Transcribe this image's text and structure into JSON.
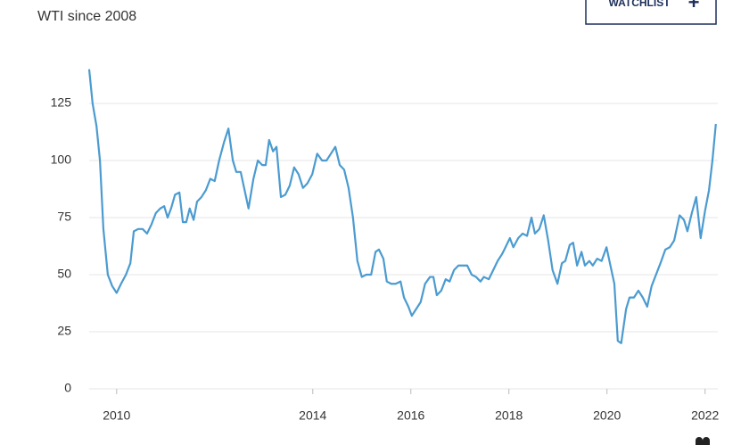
{
  "chart_data": {
    "type": "line",
    "subtitle": "WTI since 2008",
    "x": [
      2009.44,
      2009.51,
      2009.59,
      2009.66,
      2009.73,
      2009.82,
      2009.91,
      2010.0,
      2010.09,
      2010.19,
      2010.28,
      2010.35,
      2010.44,
      2010.53,
      2010.62,
      2010.71,
      2010.8,
      2010.89,
      2010.97,
      2011.04,
      2011.11,
      2011.19,
      2011.28,
      2011.35,
      2011.42,
      2011.49,
      2011.57,
      2011.64,
      2011.73,
      2011.82,
      2011.91,
      2012.0,
      2012.09,
      2012.19,
      2012.28,
      2012.37,
      2012.44,
      2012.53,
      2012.6,
      2012.69,
      2012.79,
      2012.88,
      2012.97,
      2013.04,
      2013.11,
      2013.19,
      2013.26,
      2013.35,
      2013.44,
      2013.53,
      2013.62,
      2013.71,
      2013.8,
      2013.89,
      2013.99,
      2014.09,
      2014.19,
      2014.28,
      2014.37,
      2014.46,
      2014.55,
      2014.64,
      2014.73,
      2014.82,
      2014.91,
      2015.0,
      2015.09,
      2015.19,
      2015.28,
      2015.35,
      2015.44,
      2015.51,
      2015.6,
      2015.69,
      2015.79,
      2015.86,
      2015.95,
      2016.02,
      2016.11,
      2016.2,
      2016.29,
      2016.39,
      2016.46,
      2016.53,
      2016.62,
      2016.71,
      2016.79,
      2016.88,
      2016.97,
      2017.06,
      2017.15,
      2017.24,
      2017.33,
      2017.42,
      2017.49,
      2017.59,
      2017.68,
      2017.77,
      2017.86,
      2017.93,
      2018.02,
      2018.09,
      2018.19,
      2018.28,
      2018.37,
      2018.46,
      2018.53,
      2018.62,
      2018.71,
      2018.8,
      2018.89,
      2018.99,
      2019.08,
      2019.15,
      2019.24,
      2019.31,
      2019.39,
      2019.48,
      2019.55,
      2019.64,
      2019.71,
      2019.8,
      2019.89,
      2019.99,
      2020.08,
      2020.15,
      2020.22,
      2020.29,
      2020.39,
      2020.46,
      2020.55,
      2020.64,
      2020.73,
      2020.82,
      2020.91,
      2021.0,
      2021.09,
      2021.19,
      2021.28,
      2021.37,
      2021.48,
      2021.57,
      2021.64,
      2021.73,
      2021.82,
      2021.91,
      2022.0,
      2022.08,
      2022.15,
      2022.22
    ],
    "values": [
      140,
      125,
      115,
      100,
      70,
      50,
      45,
      42,
      46,
      50,
      55,
      69,
      70,
      70,
      68,
      72,
      77,
      79,
      80,
      75,
      79,
      85,
      86,
      73,
      73,
      79,
      74,
      82,
      84,
      87,
      92,
      91,
      100,
      108,
      114,
      100,
      95,
      95,
      88,
      79,
      92,
      100,
      98,
      98,
      109,
      104,
      106,
      84,
      85,
      89,
      97,
      94,
      88,
      90,
      94,
      103,
      100,
      100,
      103,
      106,
      98,
      96,
      88,
      75,
      56,
      49,
      50,
      50,
      60,
      61,
      57,
      47,
      46,
      46,
      47,
      40,
      36,
      32,
      35,
      38,
      46,
      49,
      49,
      41,
      43,
      48,
      47,
      52,
      54,
      54,
      54,
      50,
      49,
      47,
      49,
      48,
      52,
      56,
      59,
      62,
      66,
      62,
      66,
      68,
      67,
      75,
      68,
      70,
      76,
      65,
      52,
      46,
      55,
      56,
      63,
      64,
      54,
      60,
      54,
      56,
      54,
      57,
      56,
      62,
      53,
      46,
      21,
      20,
      35,
      40,
      40,
      43,
      40,
      36,
      45,
      50,
      55,
      61,
      62,
      65,
      76,
      74,
      69,
      77,
      84,
      66,
      78,
      87,
      100,
      116
    ],
    "color": "#4b9bd0",
    "xlim": [
      2009.44,
      2022.26
    ],
    "xticks": [
      2010,
      2014,
      2016,
      2018,
      2020,
      2022
    ],
    "ylim": [
      0,
      150
    ],
    "yticks": [
      0,
      25,
      50,
      75,
      100,
      125
    ],
    "grid": true
  },
  "button": {
    "label": "WATCHLIST",
    "icon": "+"
  }
}
